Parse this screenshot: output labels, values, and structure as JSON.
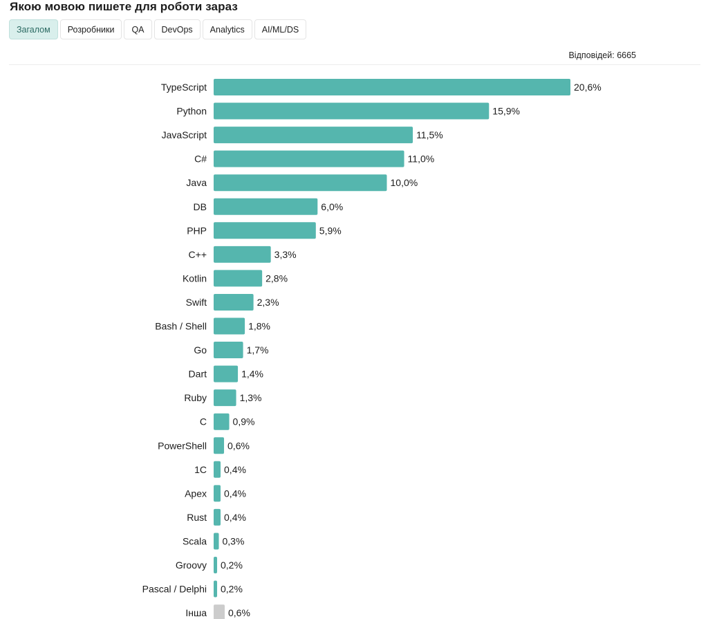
{
  "header": {
    "title": "Якою мовою пишете для роботи зараз",
    "responses": "Відповідей: 6665"
  },
  "tabs": [
    {
      "label": "Загалом",
      "active": true
    },
    {
      "label": "Розробники",
      "active": false
    },
    {
      "label": "QA",
      "active": false
    },
    {
      "label": "DevOps",
      "active": false
    },
    {
      "label": "Analytics",
      "active": false
    },
    {
      "label": "AI/ML/DS",
      "active": false
    }
  ],
  "colors": {
    "bar": "#55b6ae",
    "other_bar": "#cccccc",
    "active_tab_bg": "#d9efec"
  },
  "chart_data": {
    "type": "bar",
    "orientation": "horizontal",
    "categories": [
      "TypeScript",
      "Python",
      "JavaScript",
      "C#",
      "Java",
      "DB",
      "PHP",
      "C++",
      "Kotlin",
      "Swift",
      "Bash / Shell",
      "Go",
      "Dart",
      "Ruby",
      "C",
      "PowerShell",
      "1C",
      "Apex",
      "Rust",
      "Scala",
      "Groovy",
      "Pascal / Delphi",
      "Інша"
    ],
    "values": [
      20.6,
      15.9,
      11.5,
      11.0,
      10.0,
      6.0,
      5.9,
      3.3,
      2.8,
      2.3,
      1.8,
      1.7,
      1.4,
      1.3,
      0.9,
      0.6,
      0.4,
      0.4,
      0.4,
      0.3,
      0.2,
      0.2,
      0.6
    ],
    "labels": [
      "20,6%",
      "15,9%",
      "11,5%",
      "11,0%",
      "10,0%",
      "6,0%",
      "5,9%",
      "3,3%",
      "2,8%",
      "2,3%",
      "1,8%",
      "1,7%",
      "1,4%",
      "1,3%",
      "0,9%",
      "0,6%",
      "0,4%",
      "0,4%",
      "0,4%",
      "0,3%",
      "0,2%",
      "0,2%",
      "0,6%"
    ],
    "unit": "%"
  }
}
